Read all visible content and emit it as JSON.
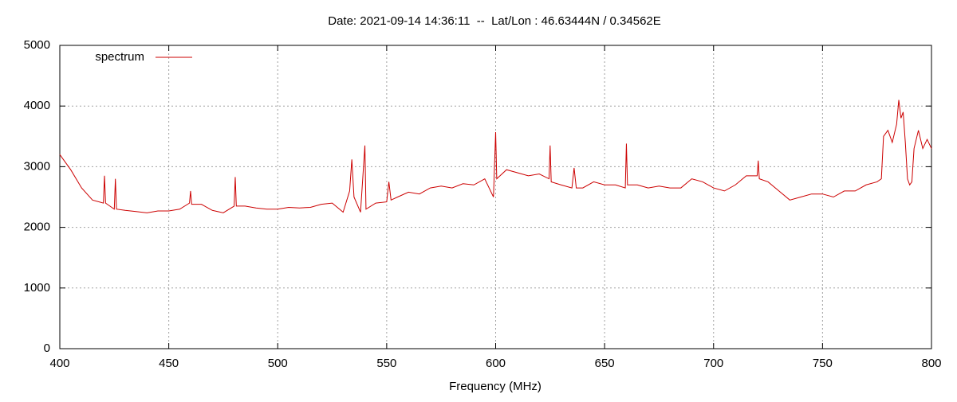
{
  "chart_data": {
    "type": "line",
    "title": "Date: 2021-09-14 14:36:11  --  Lat/Lon : 46.63444N / 0.34562E",
    "x_label": "Frequency (MHz)",
    "xlim": [
      400,
      800
    ],
    "xticks": [
      400,
      450,
      500,
      550,
      600,
      650,
      700,
      750,
      800
    ],
    "ylim": [
      0,
      5000
    ],
    "yticks": [
      0,
      1000,
      2000,
      3000,
      4000,
      5000
    ],
    "grid": true,
    "legend": "top-left",
    "series": [
      {
        "name": "spectrum",
        "color": "#cc0000",
        "x": [
          400,
          405,
          410,
          415,
          420,
          420.5,
          421,
          425,
          425.5,
          426,
          430,
          435,
          440,
          445,
          450,
          455,
          459.5,
          460,
          460.5,
          465,
          470,
          475,
          480,
          480.5,
          481,
          485,
          490,
          495,
          500,
          505,
          510,
          515,
          520,
          525,
          530,
          533,
          534,
          535,
          538,
          540,
          540.5,
          545,
          550,
          551,
          552,
          555,
          560,
          565,
          570,
          575,
          580,
          585,
          590,
          595,
          599,
          600,
          600.5,
          605,
          610,
          615,
          620,
          624.5,
          625,
          625.5,
          630,
          635,
          636,
          637,
          640,
          645,
          650,
          655,
          659.5,
          660,
          660.5,
          665,
          670,
          675,
          680,
          685,
          690,
          695,
          700,
          705,
          710,
          715,
          720,
          720.5,
          721,
          725,
          730,
          735,
          740,
          745,
          750,
          755,
          760,
          765,
          770,
          775,
          777,
          778,
          780,
          782,
          784,
          785,
          786,
          787,
          788,
          789,
          790,
          791,
          792,
          794,
          796,
          798,
          800
        ],
        "values": [
          3200,
          2950,
          2650,
          2450,
          2400,
          2850,
          2400,
          2300,
          2800,
          2300,
          2280,
          2260,
          2240,
          2270,
          2270,
          2300,
          2400,
          2600,
          2380,
          2380,
          2280,
          2240,
          2350,
          2830,
          2350,
          2350,
          2320,
          2300,
          2300,
          2330,
          2320,
          2330,
          2380,
          2400,
          2250,
          2600,
          3120,
          2500,
          2250,
          3350,
          2300,
          2400,
          2420,
          2750,
          2450,
          2500,
          2580,
          2550,
          2650,
          2680,
          2650,
          2720,
          2700,
          2800,
          2500,
          3570,
          2800,
          2950,
          2900,
          2850,
          2880,
          2800,
          3350,
          2750,
          2700,
          2650,
          2980,
          2650,
          2650,
          2750,
          2700,
          2700,
          2650,
          3380,
          2700,
          2700,
          2650,
          2680,
          2650,
          2650,
          2800,
          2750,
          2650,
          2600,
          2700,
          2850,
          2850,
          3100,
          2800,
          2750,
          2600,
          2450,
          2500,
          2550,
          2550,
          2500,
          2600,
          2600,
          2700,
          2750,
          2800,
          3500,
          3600,
          3400,
          3700,
          4100,
          3800,
          3900,
          3400,
          2800,
          2700,
          2750,
          3300,
          3600,
          3300,
          3450,
          3300
        ]
      }
    ]
  }
}
